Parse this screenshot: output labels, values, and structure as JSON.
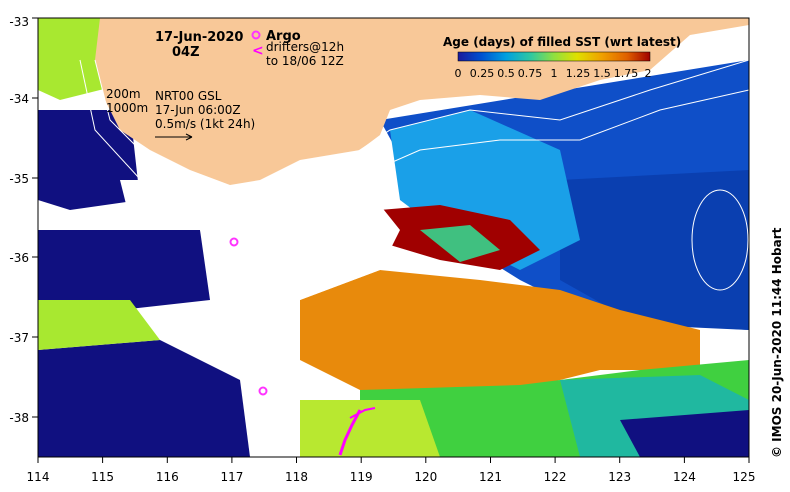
{
  "header": {
    "date": "17-Jun-2020",
    "time": "04Z"
  },
  "legend": {
    "argo_label": "Argo",
    "drifters_line1": "drifters@12h",
    "drifters_line2": "to 18/06 12Z",
    "colorbar_title": "Age (days) of filled SST (wrt latest)",
    "colorbar_ticks": [
      "0",
      "0.25",
      "0.5",
      "0.75",
      "1",
      "1.25",
      "1.5",
      "1.75",
      "2"
    ],
    "colorbar_colors": [
      "#1a1a9c",
      "#0050d0",
      "#00a0e0",
      "#30c8a0",
      "#90e040",
      "#e0e000",
      "#f0a000",
      "#e06000",
      "#a00000"
    ]
  },
  "annotations": {
    "isobath_200": "200m",
    "isobath_1000": "1000m",
    "product_line1": "NRT00 GSL",
    "product_line2": "17-Jun 06:00Z",
    "scale_text": "0.5m/s (1kt 24h)"
  },
  "credit": "© IMOS 20-Jun-2020 11:44 Hobart",
  "axes": {
    "x_ticks": [
      "114",
      "115",
      "116",
      "117",
      "118",
      "119",
      "120",
      "121",
      "122",
      "123",
      "124",
      "125"
    ],
    "y_ticks": [
      "-33",
      "-34",
      "-35",
      "-36",
      "-37",
      "-38"
    ]
  },
  "map_data": {
    "type": "heatmap",
    "lon_range": [
      114,
      125
    ],
    "lat_range": [
      -38.5,
      -33
    ],
    "land_color": "#f8c898",
    "argo_color": "#ff33ff",
    "drifter_color": "#ff00ff"
  }
}
